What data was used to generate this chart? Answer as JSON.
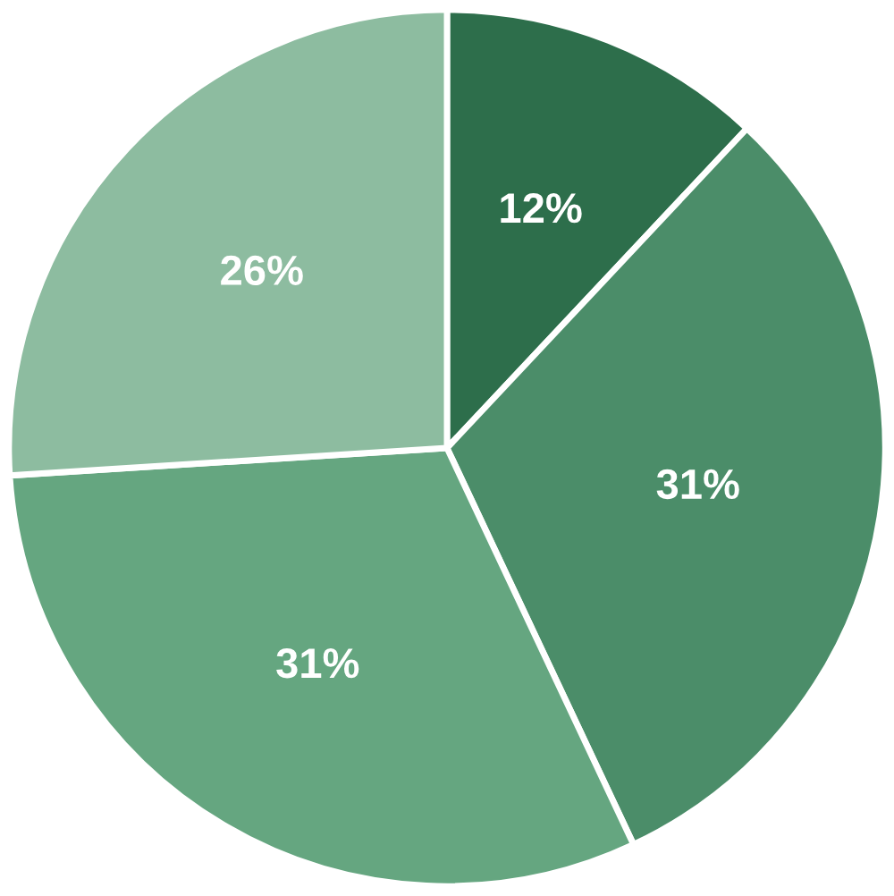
{
  "chart_data": {
    "type": "pie",
    "categories": [
      null,
      null,
      null,
      null
    ],
    "values": [
      12,
      31,
      31,
      26
    ],
    "colors": [
      "#2d6e4b",
      "#4b8d69",
      "#65a680",
      "#8dbca0"
    ],
    "value_labels": [
      "12%",
      "31%",
      "31%",
      "26%"
    ]
  }
}
